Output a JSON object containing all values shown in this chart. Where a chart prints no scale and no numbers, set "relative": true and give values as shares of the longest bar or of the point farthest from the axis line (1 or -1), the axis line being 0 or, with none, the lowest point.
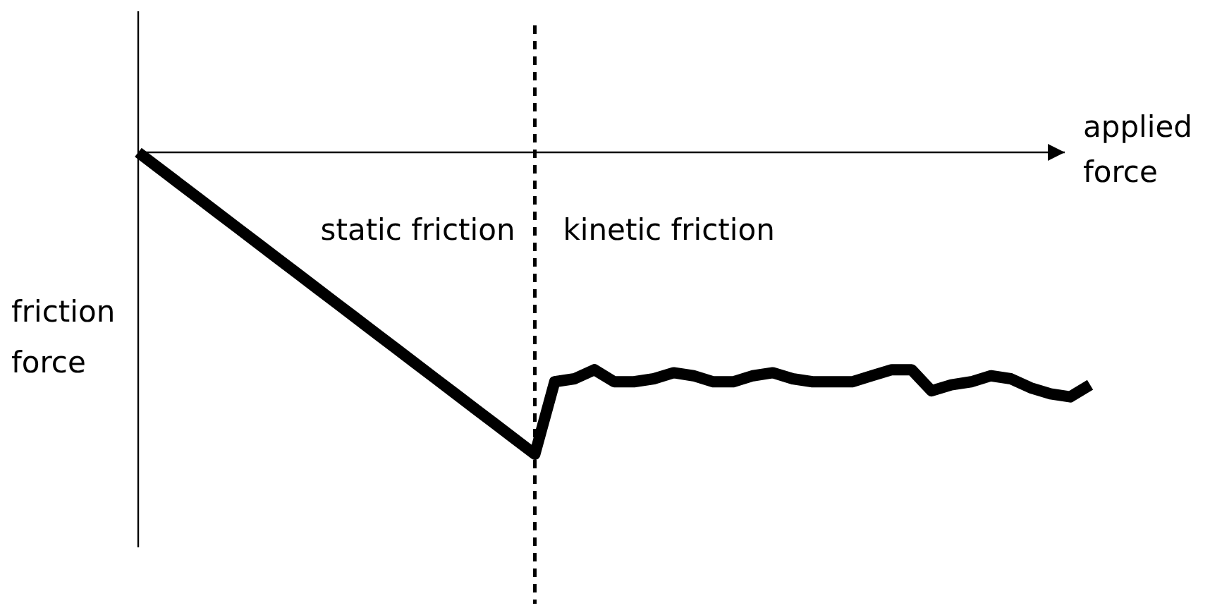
{
  "chart_data": {
    "type": "line",
    "relative": true,
    "xlabel": "applied force",
    "ylabel": "friction force",
    "marker": "none",
    "line_style": "solid",
    "categories": [
      null,
      null,
      null,
      null,
      null,
      null,
      null,
      null,
      null,
      null,
      null,
      null,
      null,
      null,
      null,
      null,
      null,
      null,
      null,
      null,
      null,
      null,
      null,
      null,
      null,
      null,
      null,
      null,
      null,
      null,
      null,
      null,
      null,
      null,
      null,
      null,
      null,
      null,
      null,
      null,
      null,
      null,
      null,
      null,
      null,
      null,
      null,
      null,
      null
    ],
    "series": [
      {
        "color": "#000000",
        "values": [
          0,
          -0.05,
          -0.1,
          -0.15,
          -0.2,
          -0.25,
          -0.3,
          -0.35,
          -0.4,
          -0.45,
          -0.5,
          -0.55,
          -0.6,
          -0.65,
          -0.7,
          -0.75,
          -0.8,
          -0.85,
          -0.9,
          -0.95,
          -1,
          -0.76,
          -0.75,
          -0.72,
          -0.76,
          -0.76,
          -0.75,
          -0.73,
          -0.74,
          -0.76,
          -0.76,
          -0.74,
          -0.73,
          -0.75,
          -0.76,
          -0.76,
          -0.76,
          -0.74,
          -0.72,
          -0.72,
          -0.79,
          -0.77,
          -0.76,
          -0.74,
          -0.75,
          -0.78,
          -0.8,
          -0.81,
          -0.77
        ]
      }
    ],
    "annotations": [
      "static friction",
      "kinetic friction"
    ]
  }
}
